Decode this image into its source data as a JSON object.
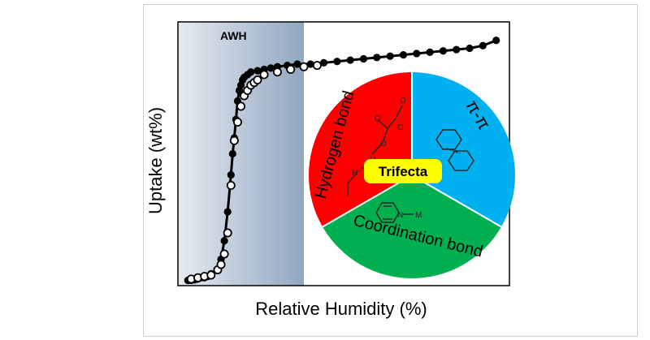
{
  "chart_data": {
    "type": "scatter",
    "xlabel": "Relative Humidity (%)",
    "ylabel": "Uptake (wt%)",
    "xlim": [
      0,
      100
    ],
    "ylim": [
      0,
      100
    ],
    "ticks_shown": false,
    "grid": false,
    "region": {
      "label": "AWH",
      "x_range": [
        0,
        38
      ]
    },
    "series": [
      {
        "marker": "filled-circle",
        "line": true,
        "x": [
          3,
          4,
          5,
          6,
          7,
          8,
          9,
          10,
          12,
          13,
          14,
          15,
          16,
          16.5,
          17,
          17.5,
          18,
          18.5,
          19,
          19.5,
          20,
          21,
          22,
          24,
          26,
          28,
          30,
          33,
          36,
          40,
          44,
          48,
          52,
          56,
          60,
          64,
          68,
          72,
          76,
          80,
          84,
          88,
          92,
          96
        ],
        "y": [
          2,
          2,
          2.2,
          2.5,
          3,
          3,
          3.5,
          4.5,
          6,
          10,
          17,
          28,
          42,
          50,
          56,
          63,
          70,
          74,
          76,
          78,
          79,
          80,
          81,
          81.5,
          82,
          82.5,
          83,
          83.5,
          84,
          84,
          84.5,
          85,
          85.5,
          86,
          86.5,
          87,
          87.5,
          88,
          88.5,
          89,
          89.5,
          90,
          91,
          93
        ]
      },
      {
        "marker": "open-circle",
        "line": false,
        "x": [
          4,
          6,
          8,
          10,
          12,
          13,
          14,
          15,
          16,
          17,
          18,
          19,
          20,
          21,
          22,
          23,
          24,
          26,
          30,
          34,
          38,
          42
        ],
        "y": [
          2.5,
          3,
          3.5,
          4,
          6,
          8,
          12,
          20,
          38,
          55,
          62,
          68,
          72,
          74,
          76,
          77,
          78,
          80,
          81,
          82,
          83,
          83.5
        ]
      }
    ],
    "inset": {
      "center_label": "Trifecta",
      "sectors": [
        {
          "label": "Hydrogen bond",
          "color": "#ff0000"
        },
        {
          "label": "π-π",
          "color": "#00b0f0"
        },
        {
          "label": "Coordination bond",
          "color": "#00b050"
        }
      ],
      "metal_label": "M",
      "nitrogen_label": "N",
      "hbond_atoms": [
        "O",
        "O",
        "O",
        "H",
        "H",
        "O"
      ]
    }
  },
  "colors": {
    "awh_gradient_start": "#e6ebf1",
    "awh_gradient_end": "#91a7c0",
    "trifecta_box": "#ffff00"
  }
}
